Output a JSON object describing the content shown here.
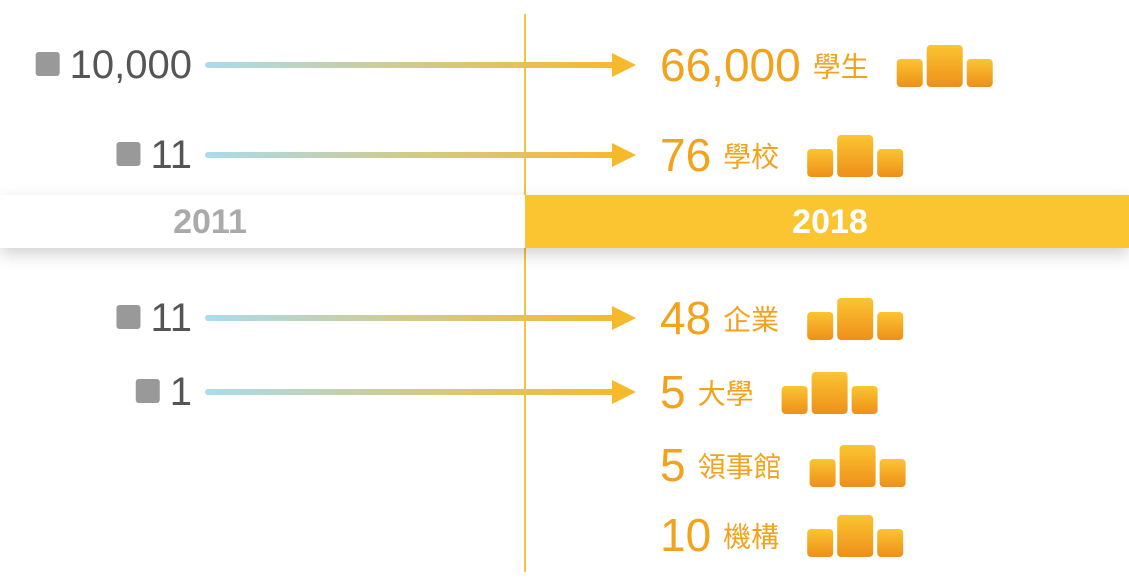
{
  "timeline": {
    "years": [
      "2011",
      "2018"
    ],
    "rows": [
      {
        "before": "10,000",
        "after": "66,000",
        "label": "學生"
      },
      {
        "before": "11",
        "after": "76",
        "label": "學校"
      },
      {
        "before": "11",
        "after": "48",
        "label": "企業"
      },
      {
        "before": "1",
        "after": "5",
        "label": "大學"
      },
      {
        "after": "5",
        "label": "領事館"
      },
      {
        "after": "10",
        "label": "機構"
      }
    ]
  }
}
